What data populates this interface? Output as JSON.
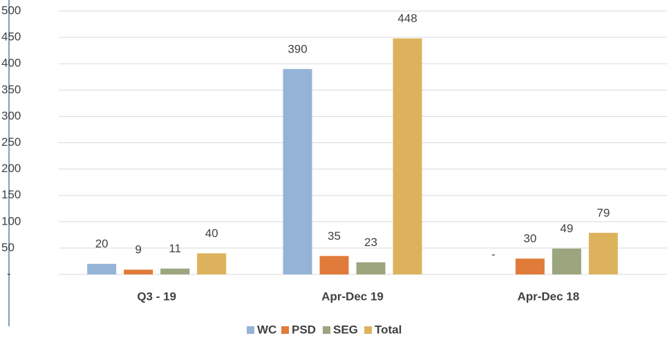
{
  "chart_data": {
    "type": "bar",
    "categories": [
      "Q3 - 19",
      "Apr-Dec 19",
      "Apr-Dec 18"
    ],
    "series": [
      {
        "name": "WC",
        "color": "#95b3d7",
        "values": [
          20,
          390,
          0
        ],
        "value_labels": [
          "20",
          "390",
          "-"
        ]
      },
      {
        "name": "PSD",
        "color": "#e07b39",
        "values": [
          9,
          35,
          30
        ]
      },
      {
        "name": "SEG",
        "color": "#9ba57e",
        "values": [
          11,
          23,
          49
        ]
      },
      {
        "name": "Total",
        "color": "#dcb35c",
        "values": [
          40,
          448,
          79
        ]
      }
    ],
    "ylim": [
      0,
      500
    ],
    "yticks": [
      {
        "value": 0,
        "label": "-"
      },
      50,
      100,
      150,
      200,
      250,
      300,
      350,
      400,
      450,
      500
    ],
    "grid": true,
    "legend": "bottom"
  }
}
